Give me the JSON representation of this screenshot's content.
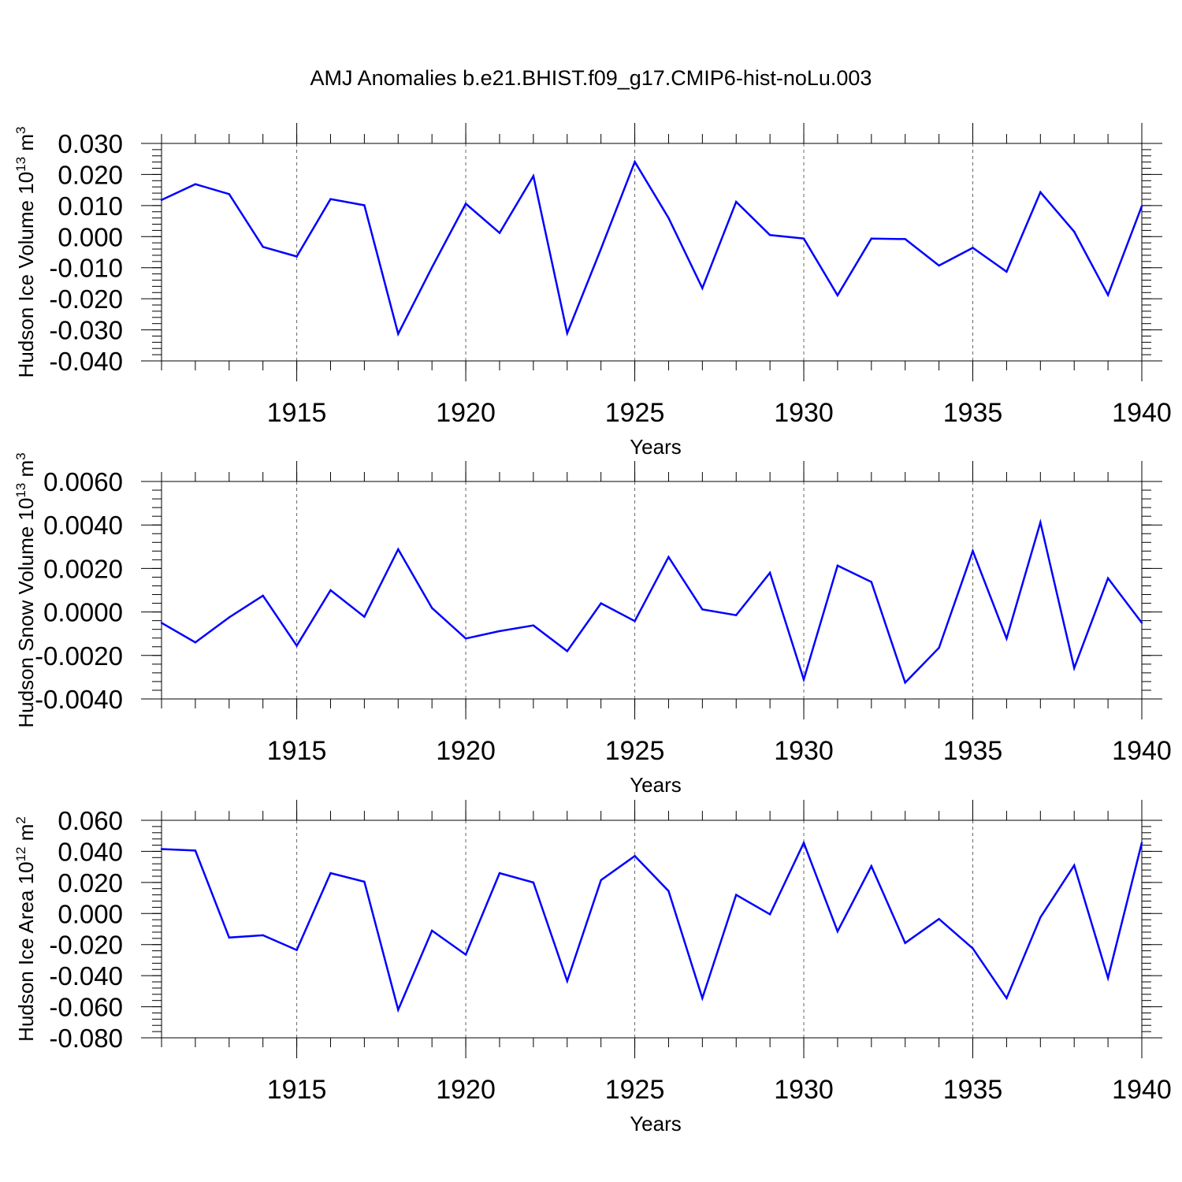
{
  "title": "AMJ Anomalies b.e21.BHIST.f09_g17.CMIP6-hist-noLu.003",
  "colors": {
    "line": "#0000ff",
    "axis": "#000000",
    "grid": "#666666"
  },
  "chart_data": [
    {
      "type": "line",
      "ylabel": "Hudson Ice Volume 10",
      "ylabel_exp": "13",
      "ylabel_unit": " m",
      "ylabel_unit_exp": "3",
      "xlabel": "Years",
      "xlim": [
        1911,
        1940
      ],
      "ylim": [
        -0.04,
        0.03
      ],
      "yticks": [
        0.03,
        0.02,
        0.01,
        0.0,
        -0.01,
        -0.02,
        -0.03,
        -0.04
      ],
      "ytick_labels": [
        "0.030",
        "0.020",
        "0.010",
        "0.000",
        "-0.010",
        "-0.020",
        "-0.030",
        "-0.040"
      ],
      "xticks": [
        1915,
        1920,
        1925,
        1930,
        1935,
        1940
      ],
      "xtick_labels": [
        "1915",
        "1920",
        "1925",
        "1930",
        "1935",
        "1940"
      ],
      "grid": "vertical dashed at major x ticks",
      "x": [
        1911,
        1912,
        1913,
        1914,
        1915,
        1916,
        1917,
        1918,
        1919,
        1920,
        1921,
        1922,
        1923,
        1924,
        1925,
        1926,
        1927,
        1928,
        1929,
        1930,
        1931,
        1932,
        1933,
        1934,
        1935,
        1936,
        1937,
        1938,
        1939,
        1940
      ],
      "series": [
        {
          "values": [
            0.0118,
            0.0169,
            0.0137,
            -0.0033,
            -0.0064,
            0.0121,
            0.0101,
            -0.0313,
            -0.0099,
            0.0106,
            0.0012,
            0.0195,
            -0.0311,
            -0.0039,
            0.0241,
            0.006,
            -0.0166,
            0.0112,
            0.0005,
            -0.0006,
            -0.0189,
            -0.0006,
            -0.0008,
            -0.0093,
            -0.0036,
            -0.0113,
            0.0143,
            0.0016,
            -0.0188,
            0.0098
          ]
        }
      ]
    },
    {
      "type": "line",
      "ylabel": "Hudson Snow Volume 10",
      "ylabel_exp": "13",
      "ylabel_unit": " m",
      "ylabel_unit_exp": "3",
      "xlabel": "Years",
      "xlim": [
        1911,
        1940
      ],
      "ylim": [
        -0.004,
        0.006
      ],
      "yticks": [
        0.006,
        0.004,
        0.002,
        0.0,
        -0.002,
        -0.004
      ],
      "ytick_labels": [
        "0.0060",
        "0.0040",
        "0.0020",
        "0.0000",
        "-0.0020",
        "-0.0040"
      ],
      "xticks": [
        1915,
        1920,
        1925,
        1930,
        1935,
        1940
      ],
      "xtick_labels": [
        "1915",
        "1920",
        "1925",
        "1930",
        "1935",
        "1940"
      ],
      "grid": "vertical dashed at major x ticks",
      "x": [
        1911,
        1912,
        1913,
        1914,
        1915,
        1916,
        1917,
        1918,
        1919,
        1920,
        1921,
        1922,
        1923,
        1924,
        1925,
        1926,
        1927,
        1928,
        1929,
        1930,
        1931,
        1932,
        1933,
        1934,
        1935,
        1936,
        1937,
        1938,
        1939,
        1940
      ],
      "series": [
        {
          "values": [
            -0.0005,
            -0.0014,
            -0.00025,
            0.00075,
            -0.00155,
            0.001,
            -0.00022,
            0.00288,
            0.00018,
            -0.00122,
            -0.00088,
            -0.00062,
            -0.0018,
            0.0004,
            -0.00042,
            0.00253,
            0.00012,
            -0.00015,
            0.0018,
            -0.0031,
            0.00213,
            0.00138,
            -0.00325,
            -0.00165,
            0.0028,
            -0.00122,
            0.00412,
            -0.00258,
            0.00155,
            -0.0005
          ]
        }
      ]
    },
    {
      "type": "line",
      "ylabel": "Hudson Ice Area 10",
      "ylabel_exp": "12",
      "ylabel_unit": " m",
      "ylabel_unit_exp": "2",
      "xlabel": "Years",
      "xlim": [
        1911,
        1940
      ],
      "ylim": [
        -0.08,
        0.06
      ],
      "yticks": [
        0.06,
        0.04,
        0.02,
        0.0,
        -0.02,
        -0.04,
        -0.06,
        -0.08
      ],
      "ytick_labels": [
        "0.060",
        "0.040",
        "0.020",
        "0.000",
        "-0.020",
        "-0.040",
        "-0.060",
        "-0.080"
      ],
      "xticks": [
        1915,
        1920,
        1925,
        1930,
        1935,
        1940
      ],
      "xtick_labels": [
        "1915",
        "1920",
        "1925",
        "1930",
        "1935",
        "1940"
      ],
      "grid": "vertical dashed at major x ticks",
      "x": [
        1911,
        1912,
        1913,
        1914,
        1915,
        1916,
        1917,
        1918,
        1919,
        1920,
        1921,
        1922,
        1923,
        1924,
        1925,
        1926,
        1927,
        1928,
        1929,
        1930,
        1931,
        1932,
        1933,
        1934,
        1935,
        1936,
        1937,
        1938,
        1939,
        1940
      ],
      "series": [
        {
          "values": [
            0.0415,
            0.0405,
            -0.0155,
            -0.014,
            -0.0235,
            0.026,
            0.0205,
            -0.062,
            -0.011,
            -0.0265,
            0.026,
            0.02,
            -0.0435,
            0.0215,
            0.037,
            0.0145,
            -0.0545,
            0.012,
            -0.0005,
            0.0455,
            -0.0115,
            0.0305,
            -0.019,
            -0.0035,
            -0.0225,
            -0.0545,
            -0.0025,
            0.031,
            -0.0415,
            0.0455
          ]
        }
      ]
    }
  ]
}
